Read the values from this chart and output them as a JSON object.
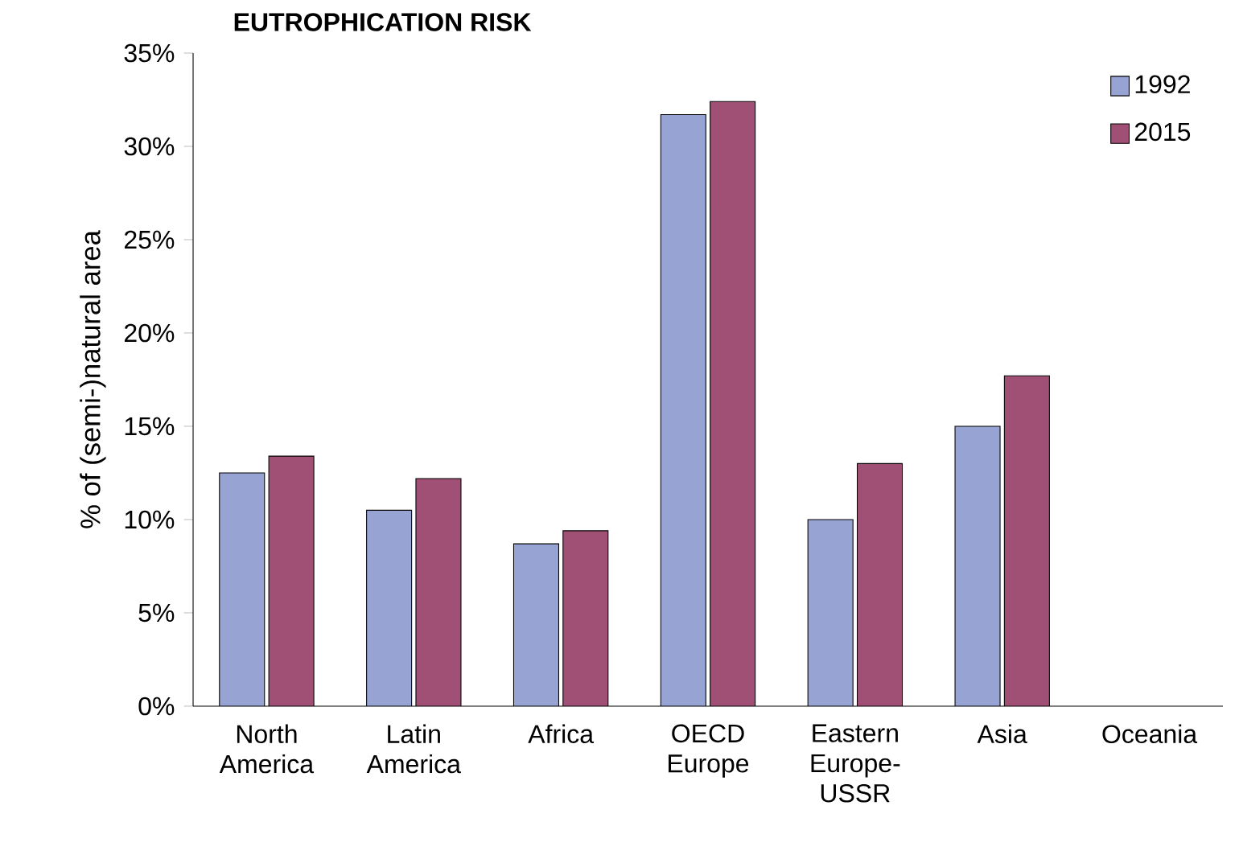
{
  "chart_data": {
    "type": "bar",
    "title": "EUTROPHICATION RISK",
    "ylabel": "% of (semi-)natural area",
    "categories": [
      "North America",
      "Latin America",
      "Africa",
      "OECD Europe",
      "Eastern Europe-USSR",
      "Asia",
      "Oceania"
    ],
    "series": [
      {
        "name": "1992",
        "color": "#97a3d2",
        "values": [
          12.5,
          10.5,
          8.7,
          31.7,
          10.0,
          15.0,
          null
        ]
      },
      {
        "name": "2015",
        "color": "#a05075",
        "values": [
          13.4,
          12.2,
          9.4,
          32.4,
          13.0,
          17.7,
          null
        ]
      }
    ],
    "ylim": [
      0,
      35
    ],
    "yticks": [
      {
        "value": 0,
        "label": "0%"
      },
      {
        "value": 5,
        "label": "5%"
      },
      {
        "value": 10,
        "label": "10%"
      },
      {
        "value": 15,
        "label": "15%"
      },
      {
        "value": 20,
        "label": "20%"
      },
      {
        "value": 25,
        "label": "25%"
      },
      {
        "value": 30,
        "label": "30%"
      },
      {
        "value": 35,
        "label": "35%"
      }
    ],
    "legend": "top right",
    "grid": false
  }
}
